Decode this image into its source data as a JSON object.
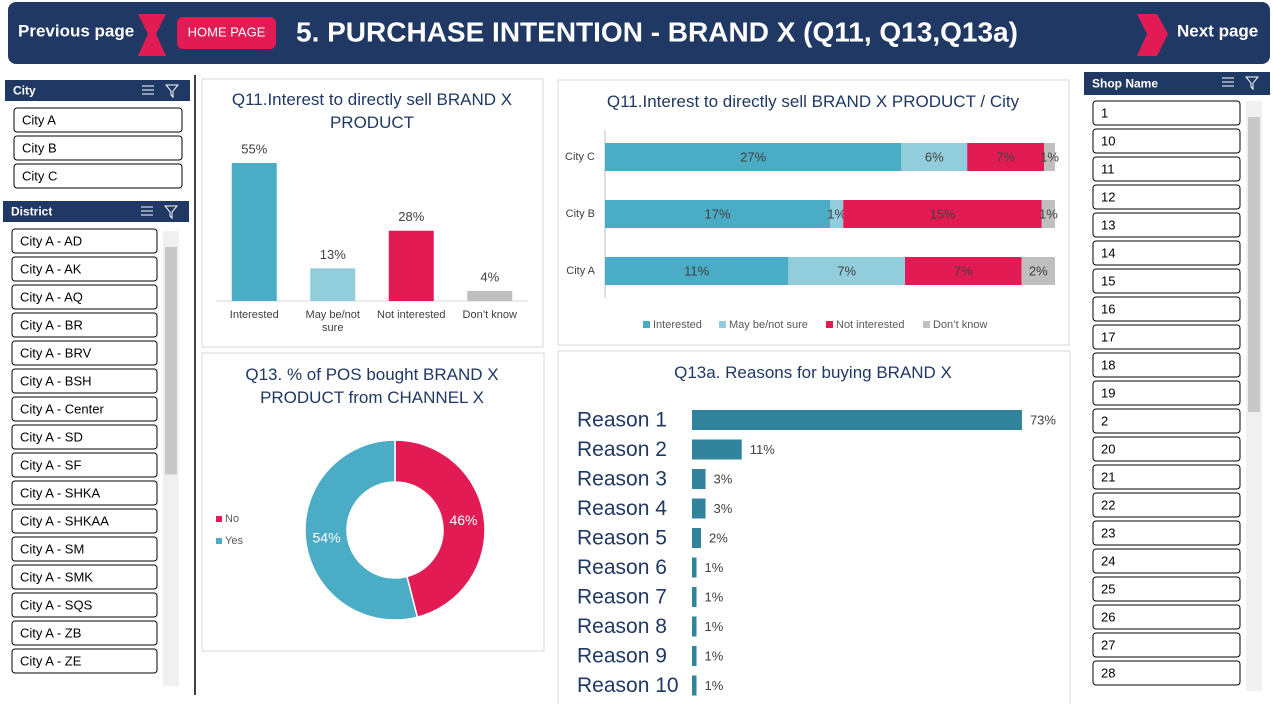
{
  "header": {
    "previous": "Previous page",
    "home": "HOME PAGE",
    "title": "5. PURCHASE INTENTION - BRAND X (Q11, Q13,Q13a)",
    "next": "Next page"
  },
  "slicers": [
    {
      "title": "City",
      "items": [
        "City A",
        "City B",
        "City C"
      ]
    },
    {
      "title": "District",
      "items": [
        "City A - AD",
        "City A - AK",
        "City A - AQ",
        "City A - BR",
        "City A - BRV",
        "City A - BSH",
        "City A - Center",
        "City A - SD",
        "City A - SF",
        "City A - SHKA",
        "City A - SHKAA",
        "City A - SM",
        "City A - SMK",
        "City A - SQS",
        "City A - ZB",
        "City A - ZE"
      ]
    },
    {
      "title": "Shop Name",
      "items": [
        "1",
        "10",
        "11",
        "12",
        "13",
        "14",
        "15",
        "16",
        "17",
        "18",
        "19",
        "2",
        "20",
        "21",
        "22",
        "23",
        "24",
        "25",
        "26",
        "27",
        "28"
      ]
    }
  ],
  "chart_data": [
    {
      "type": "bar",
      "title": "Q11.Interest to directly sell BRAND X PRODUCT",
      "categories": [
        "Interested",
        "May be/not sure",
        "Not interested",
        "Don’t know"
      ],
      "values": [
        55,
        13,
        28,
        4
      ],
      "value_labels": [
        "55%",
        "13%",
        "28%",
        "4%"
      ],
      "colors": [
        "#4bacc6",
        "#92cddc",
        "#e31b54",
        "#bfbfbf"
      ]
    },
    {
      "type": "bar",
      "orientation": "horizontal",
      "stacked": "percent",
      "title": "Q11.Interest to directly sell BRAND X PRODUCT / City",
      "categories": [
        "City C",
        "City B",
        "City A"
      ],
      "legend": "bottom",
      "series": [
        {
          "name": "Interested",
          "color": "#4bacc6",
          "values": [
            27,
            17,
            11
          ],
          "value_labels": [
            "27%",
            "17%",
            "11%"
          ]
        },
        {
          "name": "May be/not sure",
          "color": "#92cddc",
          "values": [
            6,
            1,
            7
          ],
          "value_labels": [
            "6%",
            "1%",
            "7%"
          ]
        },
        {
          "name": "Not interested",
          "color": "#e31b54",
          "values": [
            7,
            15,
            7
          ],
          "value_labels": [
            "7%",
            "15%",
            "7%"
          ]
        },
        {
          "name": "Don’t know",
          "color": "#bfbfbf",
          "values": [
            1,
            1,
            2
          ],
          "value_labels": [
            "1%",
            "1%",
            "2%"
          ]
        }
      ]
    },
    {
      "type": "donut",
      "title": "Q13. % of POS bought BRAND X PRODUCT from CHANNEL X",
      "categories": [
        "No",
        "Yes"
      ],
      "values": [
        46,
        54
      ],
      "value_labels": [
        "46%",
        "54%"
      ],
      "colors": [
        "#e31b54",
        "#4bacc6"
      ],
      "legend": "left"
    },
    {
      "type": "bar",
      "orientation": "horizontal",
      "title": "Q13a. Reasons for buying BRAND X",
      "categories": [
        "Reason 1",
        "Reason 2",
        "Reason 3",
        "Reason 4",
        "Reason 5",
        "Reason 6",
        "Reason 7",
        "Reason 8",
        "Reason 9",
        "Reason 10"
      ],
      "values": [
        73,
        11,
        3,
        3,
        2,
        1,
        1,
        1,
        1,
        1
      ],
      "value_labels": [
        "73%",
        "11%",
        "3%",
        "3%",
        "2%",
        "1%",
        "1%",
        "1%",
        "1%",
        "1%"
      ],
      "color": "#31849b"
    }
  ]
}
